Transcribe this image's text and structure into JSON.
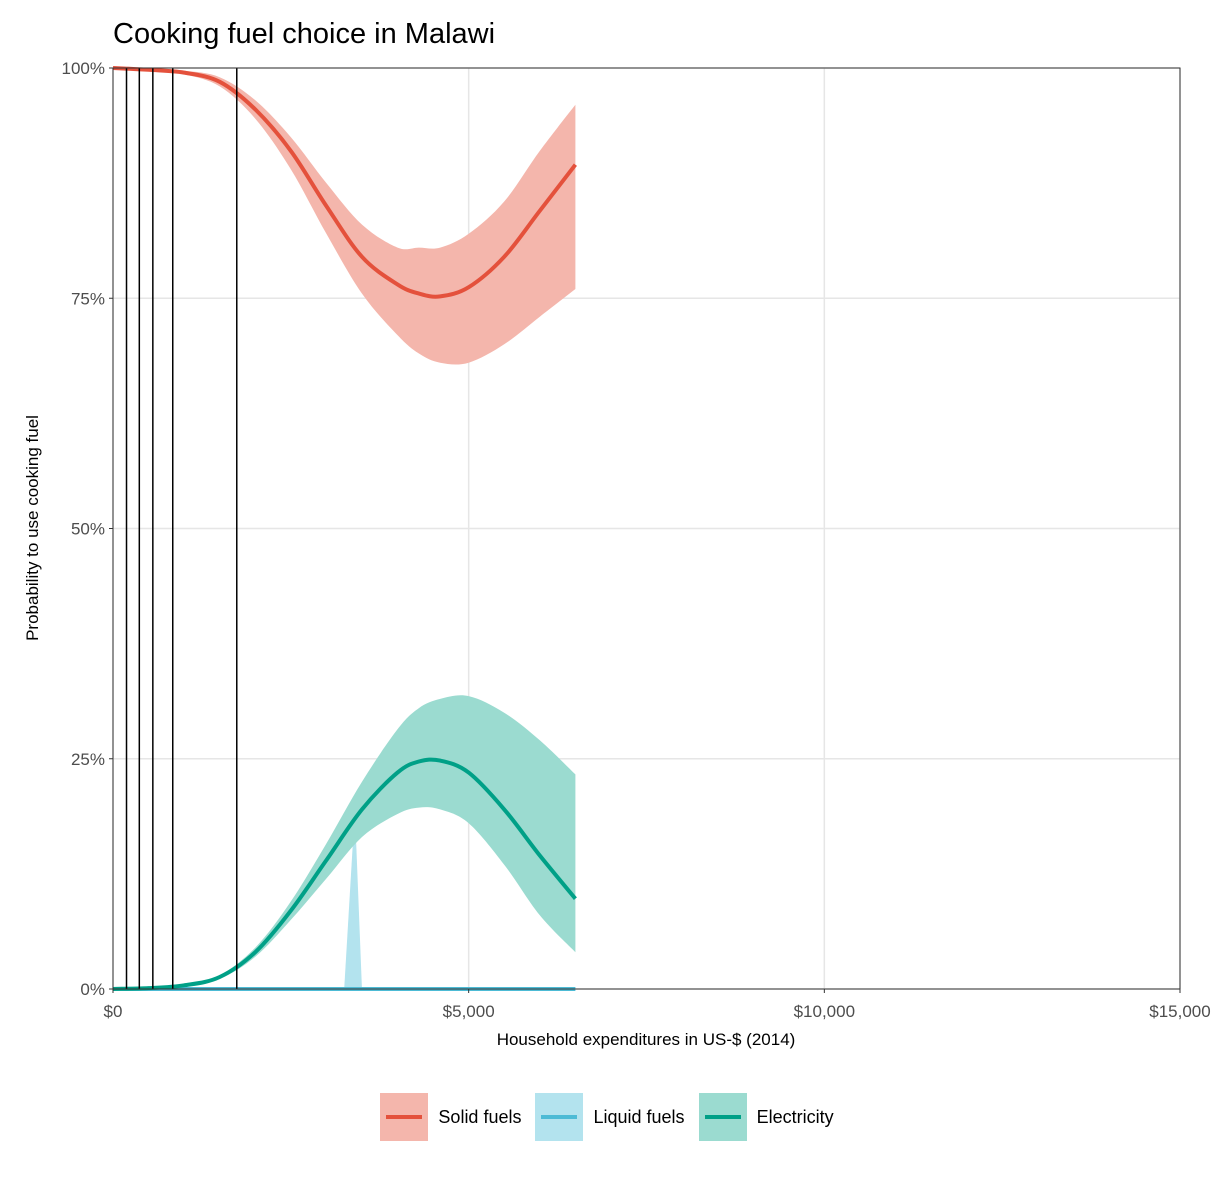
{
  "title": "Cooking fuel choice in Malawi",
  "chart_data": {
    "type": "line",
    "title": "Cooking fuel choice in Malawi",
    "xlabel": "Household expenditures in US-$ (2014)",
    "ylabel": "Probability to use cooking fuel",
    "xlim": [
      0,
      15000
    ],
    "ylim": [
      0,
      1
    ],
    "x_ticks": [
      0,
      5000,
      10000,
      15000
    ],
    "x_tick_labels": [
      "$0",
      "$5,000",
      "$10,000",
      "$15,000"
    ],
    "y_ticks": [
      0,
      0.25,
      0.5,
      0.75,
      1
    ],
    "y_tick_labels": [
      "0%",
      "25%",
      "50%",
      "75%",
      "100%"
    ],
    "grid": true,
    "legend_position": "bottom",
    "vertical_lines_x": [
      190,
      370,
      560,
      840,
      1740
    ],
    "x": [
      0,
      500,
      1000,
      1500,
      2000,
      2500,
      3000,
      3500,
      4000,
      4300,
      4600,
      5000,
      5500,
      6000,
      6500
    ],
    "series": [
      {
        "name": "Solid fuels",
        "color": "#E4513C",
        "band_color": "#F4B6AC",
        "values": [
          1.0,
          0.998,
          0.995,
          0.985,
          0.955,
          0.91,
          0.85,
          0.795,
          0.765,
          0.755,
          0.752,
          0.762,
          0.795,
          0.845,
          0.895
        ],
        "lower": [
          1.0,
          0.997,
          0.993,
          0.98,
          0.945,
          0.89,
          0.82,
          0.755,
          0.71,
          0.69,
          0.68,
          0.68,
          0.7,
          0.73,
          0.76
        ],
        "upper": [
          1.0,
          0.999,
          0.997,
          0.99,
          0.965,
          0.925,
          0.875,
          0.83,
          0.805,
          0.805,
          0.805,
          0.82,
          0.855,
          0.91,
          0.96
        ]
      },
      {
        "name": "Liquid fuels",
        "color": "#4DBBD5",
        "band_color": "#B3E3EE",
        "values": [
          0,
          0,
          0,
          0,
          0,
          0,
          0,
          0,
          0,
          0,
          0,
          0,
          0,
          0,
          0
        ],
        "spike": {
          "x_start": 3250,
          "x_peak": 3400,
          "x_end": 3500,
          "peak_upper": 0.195
        }
      },
      {
        "name": "Electricity",
        "color": "#00A087",
        "band_color": "#9BDBD0",
        "values": [
          0,
          0.001,
          0.004,
          0.013,
          0.04,
          0.085,
          0.14,
          0.195,
          0.235,
          0.247,
          0.248,
          0.235,
          0.195,
          0.145,
          0.098
        ],
        "lower": [
          0,
          0.001,
          0.003,
          0.011,
          0.035,
          0.075,
          0.12,
          0.165,
          0.19,
          0.197,
          0.195,
          0.18,
          0.135,
          0.08,
          0.04
        ],
        "upper": [
          0,
          0.001,
          0.005,
          0.015,
          0.045,
          0.095,
          0.158,
          0.225,
          0.282,
          0.305,
          0.315,
          0.318,
          0.3,
          0.27,
          0.233
        ]
      }
    ]
  }
}
